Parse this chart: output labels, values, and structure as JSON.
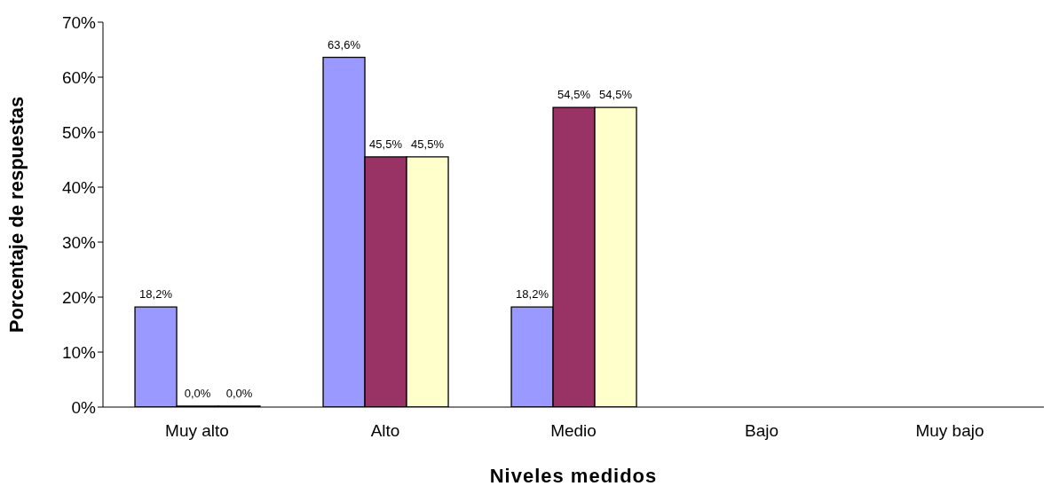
{
  "chart_data": {
    "type": "bar",
    "xlabel": "Niveles medidos",
    "ylabel": "Porcentaje de respuestas",
    "categories": [
      "Muy alto",
      "Alto",
      "Medio",
      "Bajo",
      "Muy bajo"
    ],
    "series": [
      {
        "color": "#9999ff",
        "values": [
          18.2,
          63.6,
          18.2,
          null,
          null
        ],
        "value_labels": [
          "18,2%",
          "63,6%",
          "18,2%",
          null,
          null
        ]
      },
      {
        "color": "#993366",
        "values": [
          0,
          45.5,
          54.5,
          null,
          null
        ],
        "value_labels": [
          "0,0%",
          "45,5%",
          "54,5%",
          null,
          null
        ]
      },
      {
        "color": "#ffffcc",
        "values": [
          0,
          45.5,
          54.5,
          null,
          null
        ],
        "value_labels": [
          "0,0%",
          "45,5%",
          "54,5%",
          null,
          null
        ]
      }
    ],
    "ylim": [
      0,
      70
    ],
    "yticks": [
      {
        "value": 0,
        "label": "0%"
      },
      {
        "value": 10,
        "label": "10%"
      },
      {
        "value": 20,
        "label": "20%"
      },
      {
        "value": 30,
        "label": "30%"
      },
      {
        "value": 40,
        "label": "40%"
      },
      {
        "value": 50,
        "label": "50%"
      },
      {
        "value": 60,
        "label": "60%"
      },
      {
        "value": 70,
        "label": "70%"
      }
    ],
    "grid": false
  }
}
